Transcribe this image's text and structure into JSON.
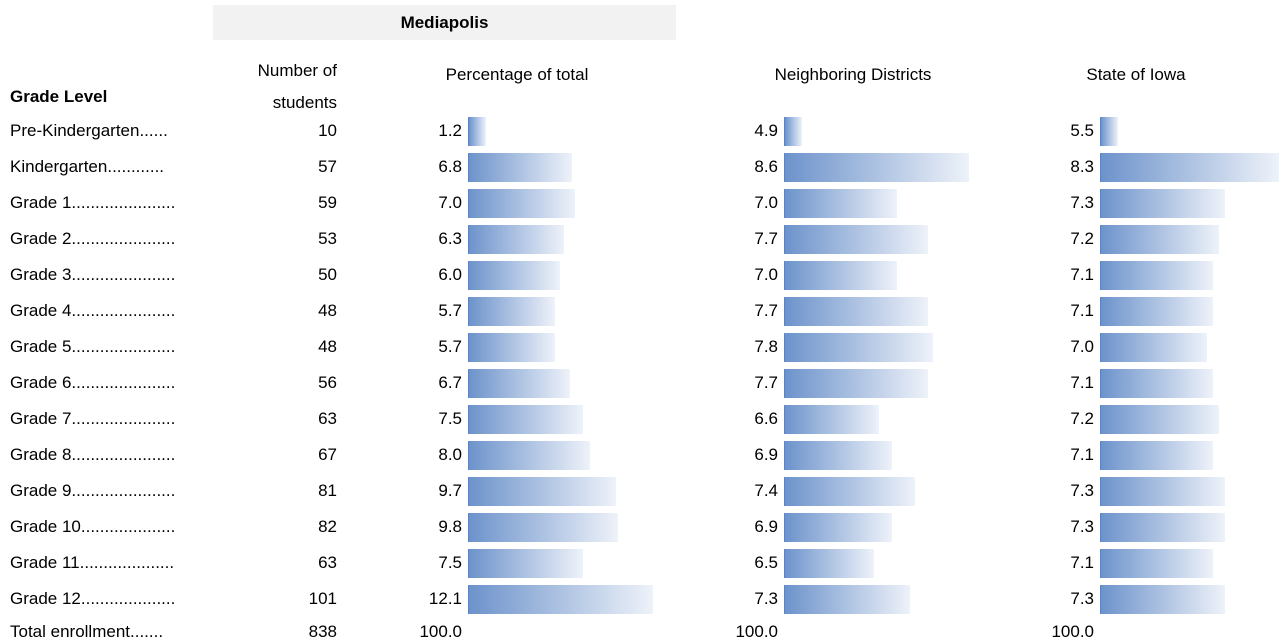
{
  "header": {
    "group": "Mediapolis",
    "columns": [
      "Grade Level",
      "Number of students",
      "Percentage of total",
      "Neighboring Districts",
      "State of Iowa"
    ]
  },
  "rows": [
    [
      "Pre-Kindergarten......",
      "10",
      "1.2",
      "4.9",
      "5.5"
    ],
    [
      "Kindergarten............",
      "57",
      "6.8",
      "8.6",
      "8.3"
    ],
    [
      "Grade 1......................",
      "59",
      "7.0",
      "7.0",
      "7.3"
    ],
    [
      "Grade 2......................",
      "53",
      "6.3",
      "7.7",
      "7.2"
    ],
    [
      "Grade 3......................",
      "50",
      "6.0",
      "7.0",
      "7.1"
    ],
    [
      "Grade 4......................",
      "48",
      "5.7",
      "7.7",
      "7.1"
    ],
    [
      "Grade 5......................",
      "48",
      "5.7",
      "7.8",
      "7.0"
    ],
    [
      "Grade 6......................",
      "56",
      "6.7",
      "7.7",
      "7.1"
    ],
    [
      "Grade 7......................",
      "63",
      "7.5",
      "6.6",
      "7.2"
    ],
    [
      "Grade 8......................",
      "67",
      "8.0",
      "6.9",
      "7.1"
    ],
    [
      "Grade 9......................",
      "81",
      "9.7",
      "7.4",
      "7.3"
    ],
    [
      "Grade 10....................",
      "82",
      "9.8",
      "6.9",
      "7.3"
    ],
    [
      "Grade 11....................",
      "63",
      "7.5",
      "6.5",
      "7.1"
    ],
    [
      "Grade 12....................",
      "101",
      "12.1",
      "7.3",
      "7.3"
    ]
  ],
  "total": [
    "Total enrollment.......",
    "838",
    "100.0",
    "100.0",
    "100.0"
  ]
}
